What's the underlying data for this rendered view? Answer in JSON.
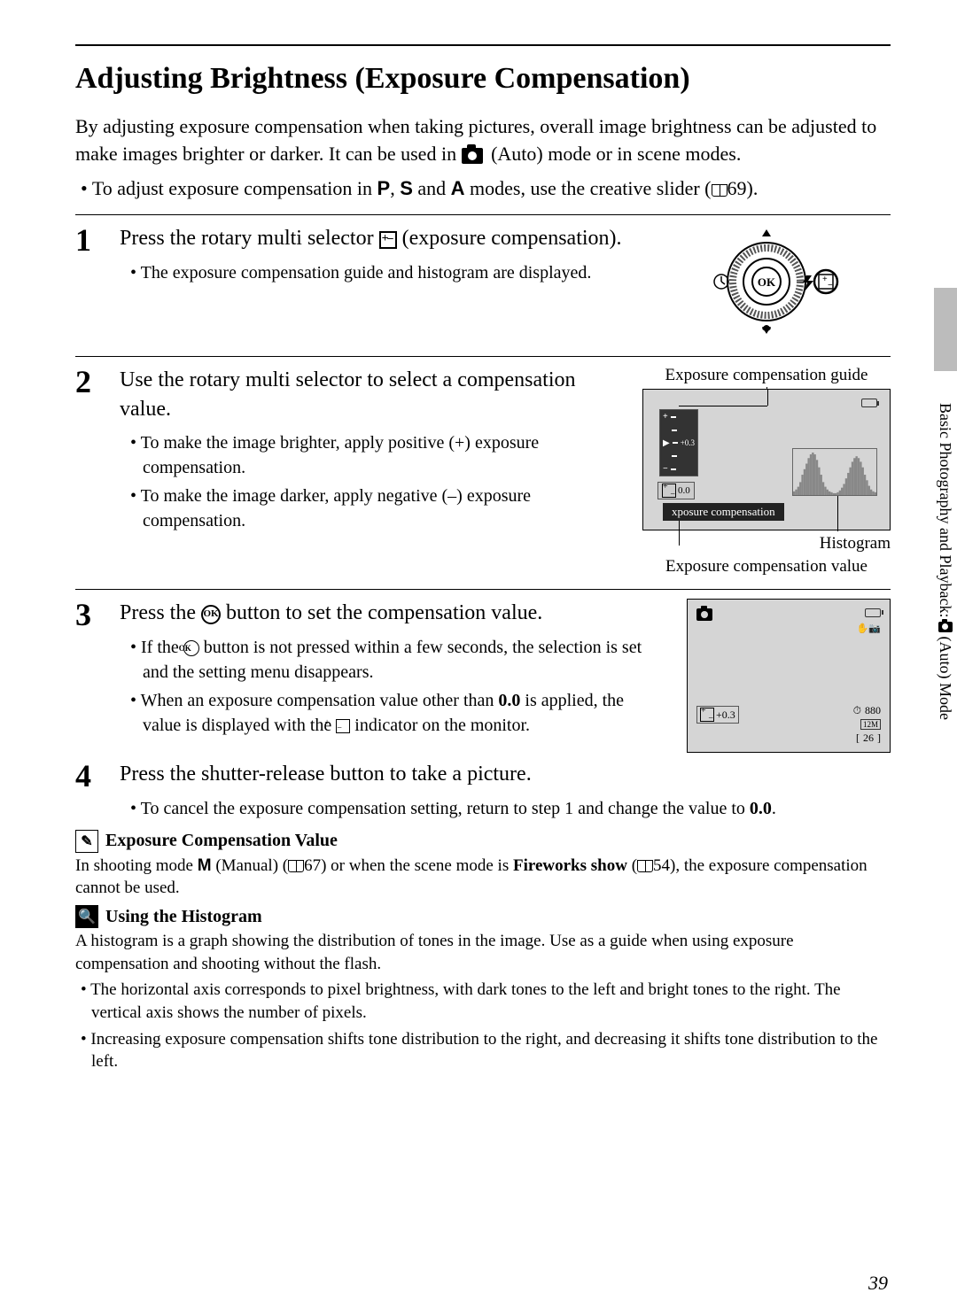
{
  "title": "Adjusting Brightness (Exposure Compensation)",
  "intro_line1": "By adjusting exposure compensation when taking pictures, overall image brightness can be adjusted to make images brighter or darker. It can be used in ",
  "intro_line2": " (Auto) mode or in scene modes.",
  "intro_bullet_pre": "To adjust exposure compensation in ",
  "intro_bullet_modes": {
    "p": "P",
    "s": "S",
    "a": "A"
  },
  "intro_bullet_post": " modes, use the creative slider (",
  "intro_bullet_ref": "69",
  "intro_bullet_end": ").",
  "step1": {
    "title_pre": "Press the rotary multi selector ",
    "title_post": " (exposure compensation).",
    "bullet1": "The exposure compensation guide and histogram are displayed."
  },
  "step2": {
    "title": "Use the rotary multi selector to select a compensation value.",
    "bullet1": "To make the image brighter, apply positive (+) exposure compensation.",
    "bullet2": "To make the image darker, apply negative (–) exposure compensation.",
    "label_guide": "Exposure compensation guide",
    "label_histogram": "Histogram",
    "label_value": "Exposure compensation value",
    "screen": {
      "scale_value": "+0.3",
      "ev_value": "0.0",
      "ec_text": "xposure compensation",
      "bars": [
        4,
        6,
        9,
        14,
        22,
        28,
        34,
        40,
        44,
        46,
        44,
        38,
        30,
        22,
        14,
        9,
        6,
        4,
        3,
        2,
        2,
        3,
        5,
        8,
        12,
        18,
        24,
        30,
        36,
        40,
        42,
        40,
        36,
        30,
        22,
        16,
        10,
        6,
        4,
        3
      ],
      "bar_color": "#888888",
      "bg_color": "#d5d5d5"
    }
  },
  "step3": {
    "title_pre": "Press the ",
    "title_post": " button to set the compensation value.",
    "bullet1_pre": "If the ",
    "bullet1_post": " button is not pressed within a few seconds, the selection is set and the setting menu disappears.",
    "bullet2_pre": "When an exposure compensation value other than ",
    "bullet2_bold": "0.0",
    "bullet2_mid": " is applied, the value is displayed with the ",
    "bullet2_post": " indicator on the monitor.",
    "screen": {
      "ev": "+0.3",
      "frames": "26",
      "time": "880",
      "bg_color": "#d5d5d5"
    }
  },
  "step4": {
    "title": "Press the shutter-release button to take a picture.",
    "bullet1_pre": "To cancel the exposure compensation setting, return to step 1 and change the value to ",
    "bullet1_bold": "0.0",
    "bullet1_post": "."
  },
  "note1": {
    "header": "Exposure Compensation Value",
    "body_pre": "In shooting mode ",
    "body_m": "M",
    "body_manual": " (Manual) (",
    "body_ref1": "67",
    "body_mid": ") or when the scene mode is ",
    "body_bold": "Fireworks show",
    "body_open": " (",
    "body_ref2": "54",
    "body_post": "), the exposure compensation cannot be used."
  },
  "note2": {
    "header": "Using the Histogram",
    "body": "A histogram is a graph showing the distribution of tones in the image. Use as a guide when using exposure compensation and shooting without the flash.",
    "bullet1": "The horizontal axis corresponds to pixel brightness, with dark tones to the left and bright tones to the right. The vertical axis shows the number of pixels.",
    "bullet2": "Increasing exposure compensation shifts tone distribution to the right, and decreasing it shifts tone distribution to the left."
  },
  "side_text_pre": "Basic Photography and Playback: ",
  "side_text_post": " (Auto) Mode",
  "page_number": "39",
  "colors": {
    "text": "#000000",
    "screen_bg": "#d5d5d5",
    "side_gray": "#bcbcbc"
  },
  "fonts": {
    "body_size_pt": 16,
    "title_size_pt": 26,
    "step_num_size_pt": 27
  }
}
